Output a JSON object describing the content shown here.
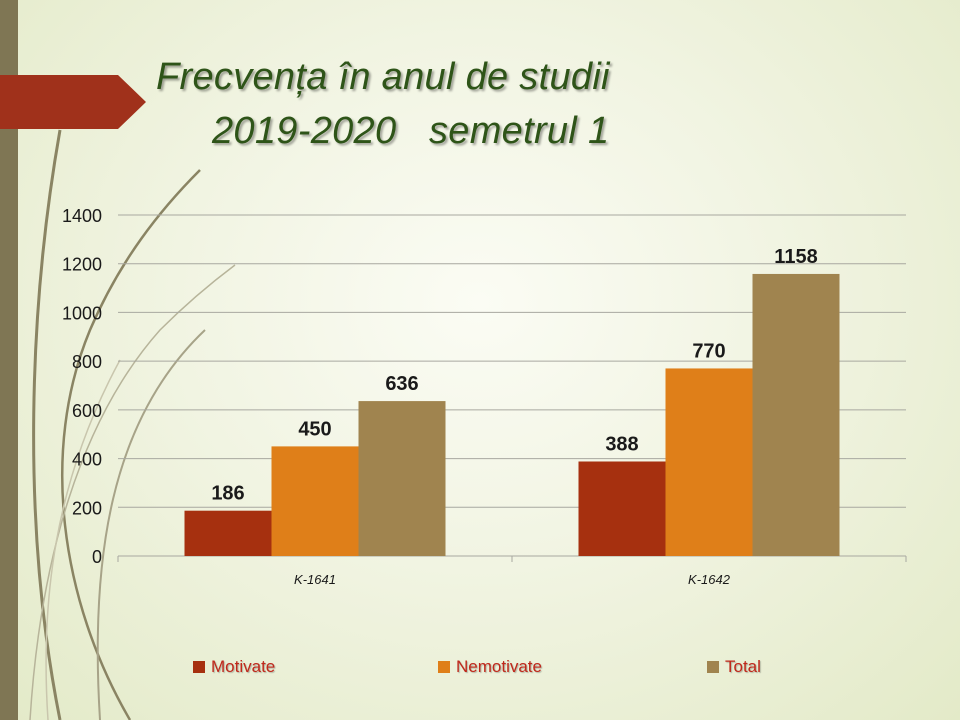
{
  "slide": {
    "title_line_1": "Frecvența în anul de studii",
    "title_line_2": "2019-2020   semetrul 1"
  },
  "colors": {
    "accent_bar": "#7f7654",
    "arrow_banner": "#a0311b",
    "title": "#2e5418",
    "legend_text": "#c0281b"
  },
  "legend": [
    {
      "label": "Motivate",
      "color": "#a6300f"
    },
    {
      "label": "Nemotivate",
      "color": "#df7f19"
    },
    {
      "label": "Total",
      "color": "#a0844f"
    }
  ],
  "chart_data": {
    "type": "bar",
    "categories": [
      "K-1641",
      "K-1642"
    ],
    "series": [
      {
        "name": "Motivate",
        "values": [
          186,
          388
        ],
        "color": "#a6300f"
      },
      {
        "name": "Nemotivate",
        "values": [
          450,
          770
        ],
        "color": "#df7f19"
      },
      {
        "name": "Total",
        "values": [
          636,
          1158
        ],
        "color": "#a0844f"
      }
    ],
    "ylim": [
      0,
      1400
    ],
    "yticks": [
      0,
      200,
      400,
      600,
      800,
      1000,
      1200,
      1400
    ],
    "grid": true,
    "data_labels": true,
    "legend_position": "bottom"
  }
}
